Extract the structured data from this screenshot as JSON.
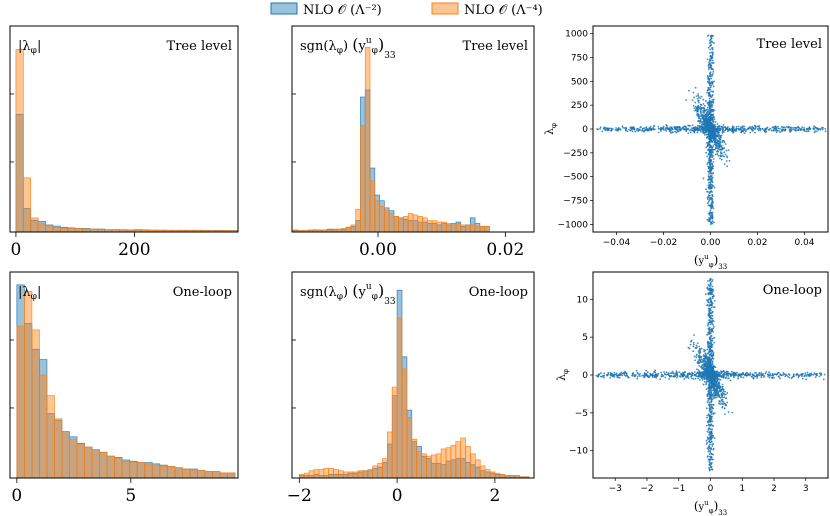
{
  "legend": {
    "items": [
      {
        "label": "NLO 𝒪 (Λ⁻²)",
        "color": "#1f77b4"
      },
      {
        "label": "NLO 𝒪 (Λ⁻⁴)",
        "color": "#ff7f0e"
      }
    ]
  },
  "chart_data": [
    {
      "id": "hist-abs-tree",
      "type": "bar",
      "annotation": "|λ_φ|",
      "level": "Tree level",
      "xlim": [
        -10,
        375
      ],
      "xticks": [
        0,
        200
      ],
      "xtick_labels": [
        "0",
        "200"
      ],
      "bin_start": 0,
      "bin_width": 12.5,
      "series": [
        {
          "name": "NLO O(Λ^-2)",
          "values": [
            100,
            20,
            10,
            9,
            6,
            5,
            4,
            3.5,
            3,
            3,
            2.5,
            2.5,
            2,
            2,
            2,
            1.8,
            2,
            1.8,
            1.6,
            1.6,
            1.5,
            1.5,
            1.5,
            1.5,
            1.5,
            1.4,
            1.4,
            1.4,
            1.3,
            1.3
          ]
        },
        {
          "name": "NLO O(Λ^-4)",
          "values": [
            155,
            46,
            12,
            7,
            5,
            4,
            3.5,
            3,
            3,
            2.5,
            2.5,
            2,
            2,
            2,
            1.8,
            1.8,
            1.6,
            1.5,
            1.5,
            1.4,
            1.5,
            1.4,
            1.3,
            1.3,
            1.3,
            1.2,
            1.2,
            1.2,
            1.2,
            1.1
          ]
        }
      ],
      "ylim": [
        0,
        175
      ]
    },
    {
      "id": "hist-sgn-tree",
      "type": "bar",
      "annotation": "sgn(λ_φ) (y^u_φ)_33",
      "level": "Tree level",
      "xlim": [
        -0.0135,
        0.0245
      ],
      "xticks": [
        0.0,
        0.02
      ],
      "xtick_labels": [
        "0.00",
        "0.02"
      ],
      "bin_start": -0.014,
      "bin_width": 0.00075,
      "series": [
        {
          "name": "NLO O(Λ^-2)",
          "values": [
            1,
            1,
            1,
            1,
            1,
            1.5,
            1,
            1.5,
            2,
            1.5,
            2,
            2,
            3,
            4,
            8,
            95,
            100,
            45,
            26,
            22,
            17,
            15,
            11,
            10,
            9,
            8,
            8,
            7,
            7,
            6,
            6,
            5,
            6,
            5,
            6,
            7,
            4,
            5,
            10,
            6,
            4,
            4
          ]
        },
        {
          "name": "NLO O(Λ^-4)",
          "values": [
            1,
            1.5,
            1,
            1,
            1.5,
            1,
            1.5,
            1.5,
            1.5,
            2,
            2,
            2.5,
            3.5,
            5,
            16,
            75,
            130,
            36,
            22,
            18,
            15,
            13,
            11,
            10,
            11,
            13,
            12,
            11,
            10,
            8,
            8,
            7,
            7,
            6,
            6,
            6,
            5,
            5,
            5,
            4,
            4,
            4
          ]
        }
      ],
      "ylim": [
        0,
        145
      ]
    },
    {
      "id": "scatter-tree",
      "type": "scatter",
      "level": "Tree level",
      "xlabel": "(y^u_φ)_33",
      "ylabel": "λ_φ",
      "xlim": [
        -0.05,
        0.05
      ],
      "ylim": [
        -1080,
        1080
      ],
      "xticks": [
        -0.04,
        -0.02,
        0.0,
        0.02,
        0.04
      ],
      "xtick_labels": [
        "−0.04",
        "−0.02",
        "0.00",
        "0.02",
        "0.04"
      ],
      "yticks": [
        -1000,
        -750,
        -500,
        -250,
        0,
        250,
        500,
        750,
        1000
      ],
      "ytick_labels": [
        "−1000",
        "−750",
        "−500",
        "−250",
        "0",
        "250",
        "500",
        "750",
        "1000"
      ],
      "cross_x_extent": [
        -0.049,
        0.049
      ],
      "cross_y_extent": [
        -1000,
        1000
      ]
    },
    {
      "id": "hist-abs-loop",
      "type": "bar",
      "annotation": "|λ_φ|",
      "level": "One-loop",
      "xlim": [
        -0.3,
        9.7
      ],
      "xticks": [
        0,
        5
      ],
      "xtick_labels": [
        "0",
        "5"
      ],
      "bin_start": 0,
      "bin_width": 0.33,
      "series": [
        {
          "name": "NLO O(Λ^-2)",
          "values": [
            150,
            120,
            100,
            92,
            50,
            45,
            36,
            32,
            27,
            24,
            22,
            20,
            17,
            16,
            14,
            13,
            12,
            12,
            11,
            10,
            9,
            8,
            7,
            7,
            6,
            5,
            5,
            4,
            4
          ]
        },
        {
          "name": "NLO O(Λ^-4)",
          "values": [
            118,
            145,
            115,
            80,
            64,
            46,
            35,
            30,
            26,
            24,
            22,
            20,
            17,
            15,
            13,
            12,
            12,
            11,
            10,
            9,
            9,
            8,
            7,
            6,
            6,
            5,
            5,
            4,
            4
          ]
        }
      ],
      "ylim": [
        0,
        160
      ]
    },
    {
      "id": "hist-sgn-loop",
      "type": "bar",
      "annotation": "sgn(λ_φ) (y^u_φ)_33",
      "level": "One-loop",
      "xlim": [
        -2.15,
        2.8
      ],
      "xticks": [
        -2,
        0,
        2
      ],
      "xtick_labels": [
        "−2",
        "0",
        "2"
      ],
      "bin_start": -2.0,
      "bin_width": 0.1,
      "series": [
        {
          "name": "NLO O(Λ^-2)",
          "values": [
            2,
            2,
            2,
            3,
            2,
            2,
            3,
            3,
            3,
            3,
            4,
            4,
            5,
            6,
            6,
            8,
            9,
            13,
            28,
            68,
            155,
            100,
            56,
            30,
            26,
            18,
            16,
            12,
            12,
            11,
            14,
            15,
            16,
            16,
            13,
            11,
            9,
            6,
            5,
            4,
            3,
            3,
            2,
            2,
            2,
            1,
            1
          ]
        },
        {
          "name": "NLO O(Λ^-4)",
          "values": [
            3,
            4,
            6,
            7,
            7,
            8,
            8,
            7,
            6,
            5,
            5,
            5,
            6,
            6,
            7,
            10,
            12,
            16,
            38,
            75,
            132,
            90,
            50,
            32,
            22,
            20,
            18,
            19,
            20,
            24,
            25,
            27,
            30,
            33,
            26,
            20,
            15,
            10,
            7,
            5,
            4,
            3,
            2,
            2,
            2,
            1,
            1
          ]
        }
      ],
      "ylim": [
        0,
        170
      ]
    },
    {
      "id": "scatter-loop",
      "type": "scatter",
      "level": "One-loop",
      "xlabel": "(y^u_φ)_33",
      "ylabel": "λ_φ",
      "xlim": [
        -3.7,
        3.7
      ],
      "ylim": [
        -13.6,
        13.6
      ],
      "xticks": [
        -3,
        -2,
        -1,
        0,
        1,
        2,
        3
      ],
      "xtick_labels": [
        "−3",
        "−2",
        "−1",
        "0",
        "1",
        "2",
        "3"
      ],
      "yticks": [
        -10,
        -5,
        0,
        5,
        10
      ],
      "ytick_labels": [
        "−10",
        "−5",
        "0",
        "5",
        "10"
      ],
      "cross_x_extent": [
        -3.6,
        3.6
      ],
      "cross_y_extent": [
        -12.7,
        12.7
      ]
    }
  ]
}
